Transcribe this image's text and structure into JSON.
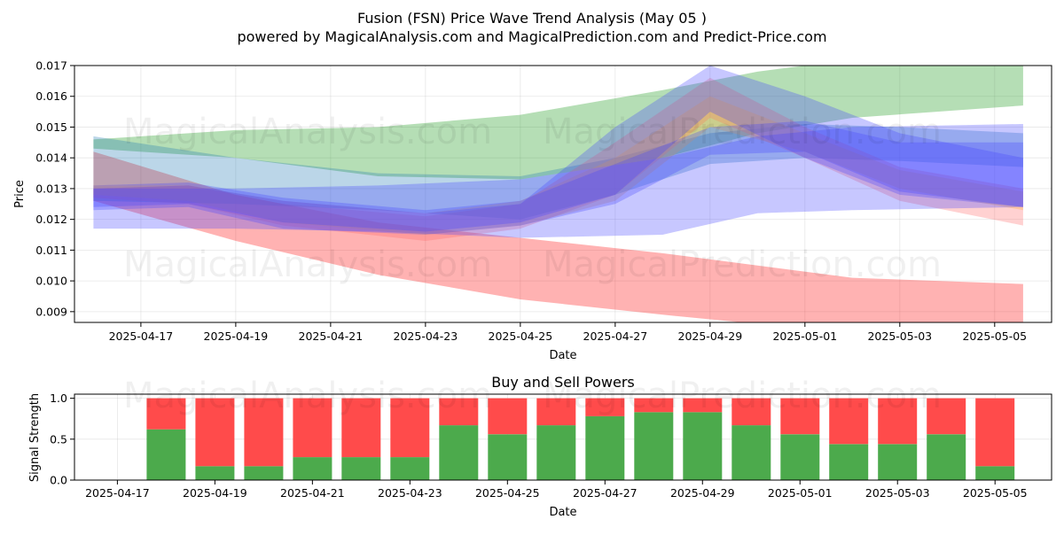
{
  "title": "Fusion (FSN) Price Wave Trend Analysis (May 05 )",
  "subtitle": "powered by MagicalAnalysis.com and MagicalPrediction.com and Predict-Price.com",
  "watermarks": [
    "MagicalAnalysis.com",
    "MagicalPrediction.com"
  ],
  "chart_data": [
    {
      "type": "area",
      "title": "",
      "xlabel": "Date",
      "ylabel": "Price",
      "xlim": [
        "2025-04-15.6",
        "2025-05-06.2"
      ],
      "ylim": [
        0.00865,
        0.017
      ],
      "grid": true,
      "x_ticks": [
        "2025-04-17",
        "2025-04-19",
        "2025-04-21",
        "2025-04-23",
        "2025-04-25",
        "2025-04-27",
        "2025-04-29",
        "2025-05-01",
        "2025-05-03",
        "2025-05-05"
      ],
      "y_ticks": [
        "0.009",
        "0.010",
        "0.011",
        "0.012",
        "0.013",
        "0.014",
        "0.015",
        "0.016",
        "0.017"
      ],
      "bands": [
        {
          "color": "#2ca02c",
          "x": [
            "2025-04-16",
            "2025-04-19",
            "2025-04-22",
            "2025-04-25",
            "2025-04-28",
            "2025-04-30",
            "2025-05-02",
            "2025-05-05.6"
          ],
          "upper": [
            0.0146,
            0.0149,
            0.015,
            0.0154,
            0.0162,
            0.0168,
            0.0172,
            0.0175
          ],
          "lower": [
            0.0143,
            0.014,
            0.0134,
            0.0133,
            0.014,
            0.0148,
            0.0153,
            0.0157
          ]
        },
        {
          "color": "#ff0000",
          "x": [
            "2025-04-16",
            "2025-04-19",
            "2025-04-22",
            "2025-04-25",
            "2025-04-28",
            "2025-04-30",
            "2025-05-02",
            "2025-05-05.6"
          ],
          "upper": [
            0.0142,
            0.0128,
            0.0119,
            0.0114,
            0.0109,
            0.0105,
            0.0101,
            0.0099
          ],
          "lower": [
            0.0126,
            0.0113,
            0.0102,
            0.0094,
            0.0089,
            0.0086,
            0.0084,
            0.0083
          ]
        },
        {
          "color": "#1f77b4",
          "x": [
            "2025-04-16",
            "2025-04-19",
            "2025-04-22",
            "2025-04-25",
            "2025-04-27",
            "2025-04-29",
            "2025-05-01",
            "2025-05-03",
            "2025-05-05.6"
          ],
          "upper": [
            0.0147,
            0.014,
            0.0135,
            0.0134,
            0.014,
            0.0148,
            0.0151,
            0.015,
            0.0148
          ],
          "lower": [
            0.0126,
            0.0125,
            0.0123,
            0.012,
            0.0128,
            0.0138,
            0.014,
            0.0139,
            0.0137
          ]
        },
        {
          "color": "#ff6666",
          "x": [
            "2025-04-16",
            "2025-04-18",
            "2025-04-20",
            "2025-04-23",
            "2025-04-25",
            "2025-04-27",
            "2025-04-29",
            "2025-05-01",
            "2025-05-03",
            "2025-05-05.6"
          ],
          "upper": [
            0.013,
            0.0131,
            0.0125,
            0.0121,
            0.0125,
            0.0145,
            0.0166,
            0.015,
            0.0137,
            0.013
          ],
          "lower": [
            0.0127,
            0.0125,
            0.0118,
            0.0113,
            0.0117,
            0.0128,
            0.0153,
            0.014,
            0.0126,
            0.0118
          ]
        },
        {
          "color": "#ffaa33",
          "x": [
            "2025-04-16",
            "2025-04-18",
            "2025-04-20",
            "2025-04-23",
            "2025-04-25",
            "2025-04-27",
            "2025-04-29",
            "2025-05-01",
            "2025-05-03",
            "2025-05-05.6"
          ],
          "upper": [
            0.0131,
            0.0131,
            0.0126,
            0.0122,
            0.0126,
            0.014,
            0.016,
            0.0148,
            0.0136,
            0.0129
          ],
          "lower": [
            0.0128,
            0.0126,
            0.0119,
            0.0115,
            0.0118,
            0.0126,
            0.015,
            0.0142,
            0.013,
            0.0123
          ]
        },
        {
          "color": "#4444ff",
          "x": [
            "2025-04-16",
            "2025-04-18",
            "2025-04-20",
            "2025-04-23",
            "2025-04-25",
            "2025-04-27",
            "2025-04-29",
            "2025-05-01",
            "2025-05-03",
            "2025-05-05.6"
          ],
          "upper": [
            0.0131,
            0.0132,
            0.0127,
            0.0123,
            0.0126,
            0.0138,
            0.015,
            0.0152,
            0.0145,
            0.0145
          ],
          "lower": [
            0.0123,
            0.0124,
            0.0117,
            0.0115,
            0.0118,
            0.0125,
            0.0141,
            0.0142,
            0.0129,
            0.0124
          ]
        },
        {
          "color": "#4444ff",
          "x": [
            "2025-04-16",
            "2025-04-18",
            "2025-04-20",
            "2025-04-23",
            "2025-04-25",
            "2025-04-27",
            "2025-04-29",
            "2025-05-01",
            "2025-05-03",
            "2025-05-05.6"
          ],
          "upper": [
            0.013,
            0.0131,
            0.0126,
            0.0122,
            0.0125,
            0.015,
            0.017,
            0.016,
            0.0148,
            0.014
          ],
          "lower": [
            0.0124,
            0.0125,
            0.0119,
            0.0116,
            0.0119,
            0.0128,
            0.0155,
            0.014,
            0.0128,
            0.0124
          ]
        },
        {
          "color": "#4444ff",
          "x": [
            "2025-04-16",
            "2025-04-19",
            "2025-04-22",
            "2025-04-25",
            "2025-04-28",
            "2025-04-30",
            "2025-05-02",
            "2025-05-05.6"
          ],
          "upper": [
            0.013,
            0.013,
            0.0131,
            0.0133,
            0.014,
            0.0147,
            0.015,
            0.0151
          ],
          "lower": [
            0.0117,
            0.0117,
            0.0116,
            0.0114,
            0.0115,
            0.0122,
            0.0123,
            0.0124
          ]
        }
      ]
    },
    {
      "type": "bar",
      "title": "Buy and Sell Powers",
      "xlabel": "Date",
      "ylabel": "Signal Strength",
      "ylim": [
        0,
        1.05
      ],
      "grid": true,
      "x_ticks": [
        "2025-04-17",
        "2025-04-19",
        "2025-04-21",
        "2025-04-23",
        "2025-04-25",
        "2025-04-27",
        "2025-04-29",
        "2025-05-01",
        "2025-05-03",
        "2025-05-05"
      ],
      "y_ticks": [
        "0.0",
        "0.5",
        "1.0"
      ],
      "categories": [
        "2025-04-18",
        "2025-04-19",
        "2025-04-20",
        "2025-04-21",
        "2025-04-22",
        "2025-04-23",
        "2025-04-24",
        "2025-04-25",
        "2025-04-26",
        "2025-04-27",
        "2025-04-28",
        "2025-04-29",
        "2025-04-30",
        "2025-05-01",
        "2025-05-02",
        "2025-05-03",
        "2025-05-04",
        "2025-05-05"
      ],
      "series": [
        {
          "color": "#4caa4c",
          "values": [
            0.62,
            0.17,
            0.17,
            0.28,
            0.28,
            0.28,
            0.67,
            0.56,
            0.67,
            0.78,
            0.83,
            0.83,
            0.67,
            0.56,
            0.44,
            0.44,
            0.56,
            0.17
          ]
        },
        {
          "color": "#ff4b4b",
          "values": [
            0.38,
            0.83,
            0.83,
            0.72,
            0.72,
            0.72,
            0.33,
            0.44,
            0.33,
            0.22,
            0.17,
            0.17,
            0.33,
            0.44,
            0.56,
            0.56,
            0.44,
            0.83
          ]
        }
      ]
    }
  ]
}
